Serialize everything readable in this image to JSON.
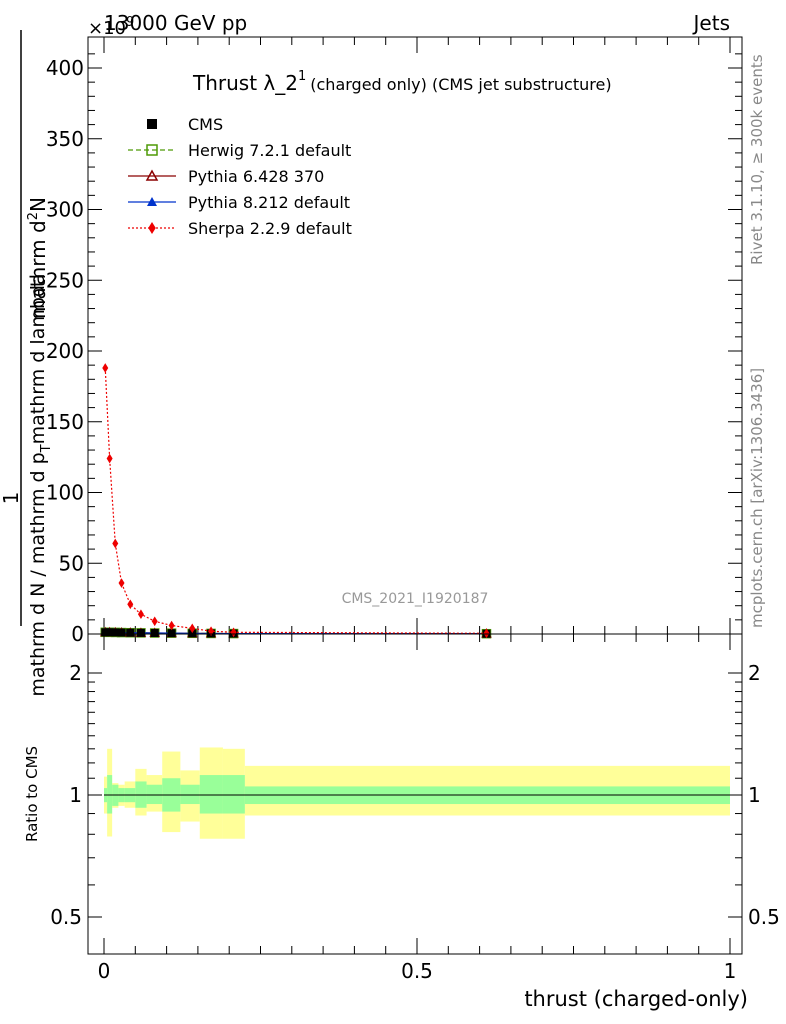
{
  "header": {
    "left": "13000 GeV pp",
    "right": "Jets",
    "exponent_base": "×10",
    "exponent_power": "9"
  },
  "side_labels": {
    "rivet": "Rivet 3.1.10, ≥ 300k events",
    "mcplots": "mcplots.cern.ch [arXiv:1306.3436]"
  },
  "watermark": "CMS_2021_I1920187",
  "chart_data": [
    {
      "type": "line",
      "panel": "main",
      "title": "Thrust λ_2^1 (charged only) (CMS jet substructure)",
      "title_main": "Thrust λ_2",
      "title_sup": "1",
      "title_rest": "(charged only) (CMS jet substructure)",
      "ylabel_numerator": "1",
      "ylabel_line1": "mathrm d N / mathrm d p",
      "ylabel_sub": "T",
      "ylabel_line2": "mathrm d lambda",
      "ylabel_top": "mathrm d",
      "ylabel_top_sup": "2",
      "ylabel_top_end": "N",
      "ylabel_bottom": "mathrm d N / mathrm d p_T mathrm d lambda",
      "xlim": [
        0,
        1
      ],
      "ylim": [
        0,
        420
      ],
      "y_unit_exponent": 9,
      "y_ticks": [
        0,
        50,
        100,
        150,
        200,
        250,
        300,
        350,
        400
      ],
      "x_ticks": [
        0,
        0.5,
        1
      ],
      "x_tick_labels": [
        "0",
        "0.5",
        "1"
      ],
      "legend": [
        {
          "name": "CMS",
          "color": "#000000",
          "marker": "square-filled",
          "line": "none"
        },
        {
          "name": "Herwig 7.2.1 default",
          "color": "#4e9a06",
          "marker": "square-open",
          "line": "dashed"
        },
        {
          "name": "Pythia 6.428 370",
          "color": "#8b0000",
          "marker": "triangle-open",
          "line": "solid"
        },
        {
          "name": "Pythia 8.212 default",
          "color": "#0033cc",
          "marker": "triangle-filled",
          "line": "solid"
        },
        {
          "name": "Sherpa 2.2.9 default",
          "color": "#ee0000",
          "marker": "diamond-filled",
          "line": "dotted"
        }
      ],
      "series": [
        {
          "name": "Sherpa 2.2.9 default",
          "x": [
            0.002,
            0.009,
            0.018,
            0.028,
            0.042,
            0.059,
            0.081,
            0.108,
            0.141,
            0.171,
            0.207,
            0.611
          ],
          "y": [
            188,
            124,
            64,
            36,
            21,
            14,
            9,
            6,
            4,
            2,
            1.2,
            0.5
          ]
        },
        {
          "name": "CMS",
          "x": [
            0.002,
            0.009,
            0.018,
            0.028,
            0.042,
            0.059,
            0.081,
            0.108,
            0.141,
            0.171,
            0.207,
            0.611
          ],
          "y": [
            1.2,
            1.2,
            1.1,
            1.0,
            0.9,
            0.8,
            0.7,
            0.6,
            0.5,
            0.4,
            0.3,
            0.2
          ]
        },
        {
          "name": "Herwig 7.2.1 default",
          "x": [
            0.002,
            0.009,
            0.018,
            0.028,
            0.042,
            0.059,
            0.081,
            0.108,
            0.141,
            0.171,
            0.207,
            0.611
          ],
          "y": [
            1.2,
            1.2,
            1.1,
            1.0,
            0.9,
            0.8,
            0.7,
            0.6,
            0.5,
            0.4,
            0.3,
            0.2
          ]
        },
        {
          "name": "Pythia 6.428 370",
          "x": [
            0.002,
            0.009,
            0.018,
            0.028,
            0.042,
            0.059,
            0.081,
            0.108,
            0.141,
            0.171,
            0.207,
            0.611
          ],
          "y": [
            1.2,
            1.2,
            1.1,
            1.0,
            0.9,
            0.8,
            0.7,
            0.6,
            0.5,
            0.4,
            0.3,
            0.2
          ]
        },
        {
          "name": "Pythia 8.212 default",
          "x": [
            0.002,
            0.009,
            0.018,
            0.028,
            0.042,
            0.059,
            0.081,
            0.108,
            0.141,
            0.171,
            0.207,
            0.611
          ],
          "y": [
            1.2,
            1.2,
            1.1,
            1.0,
            0.9,
            0.8,
            0.7,
            0.6,
            0.5,
            0.4,
            0.3,
            0.2
          ]
        }
      ],
      "grid": false
    },
    {
      "type": "area",
      "panel": "ratio",
      "ylabel": "Ratio to CMS",
      "xlabel": "thrust (charged-only)",
      "xlim": [
        0,
        1
      ],
      "ylim": [
        0.44,
        2.4
      ],
      "y_scale": "log",
      "y_ticks": [
        0.5,
        1,
        2
      ],
      "y_tick_labels": [
        "0.5",
        "1",
        "2"
      ],
      "x_ticks": [
        0,
        0.5,
        1
      ],
      "x_tick_labels": [
        "0",
        "0.5",
        "1"
      ],
      "reference_line": 1,
      "bands": {
        "bins": [
          [
            0,
            0.005
          ],
          [
            0.005,
            0.013
          ],
          [
            0.013,
            0.023
          ],
          [
            0.023,
            0.033
          ],
          [
            0.033,
            0.05
          ],
          [
            0.05,
            0.068
          ],
          [
            0.068,
            0.093
          ],
          [
            0.093,
            0.122
          ],
          [
            0.122,
            0.153
          ],
          [
            0.153,
            0.19
          ],
          [
            0.19,
            0.225
          ],
          [
            0.225,
            1.0
          ]
        ],
        "stat_low": [
          0.96,
          0.9,
          0.94,
          0.96,
          0.96,
          0.93,
          0.95,
          0.91,
          0.95,
          0.9,
          0.9,
          0.95
        ],
        "stat_high": [
          1.04,
          1.12,
          1.06,
          1.04,
          1.04,
          1.08,
          1.06,
          1.1,
          1.06,
          1.12,
          1.12,
          1.05
        ],
        "total_low": [
          0.9,
          0.79,
          0.93,
          0.94,
          0.93,
          0.89,
          0.91,
          0.81,
          0.86,
          0.78,
          0.78,
          0.89
        ],
        "total_high": [
          1.11,
          1.3,
          1.07,
          1.06,
          1.08,
          1.16,
          1.12,
          1.28,
          1.15,
          1.31,
          1.3,
          1.18
        ],
        "stat_color": "#99ff99",
        "total_color": "#ffff99"
      }
    }
  ]
}
